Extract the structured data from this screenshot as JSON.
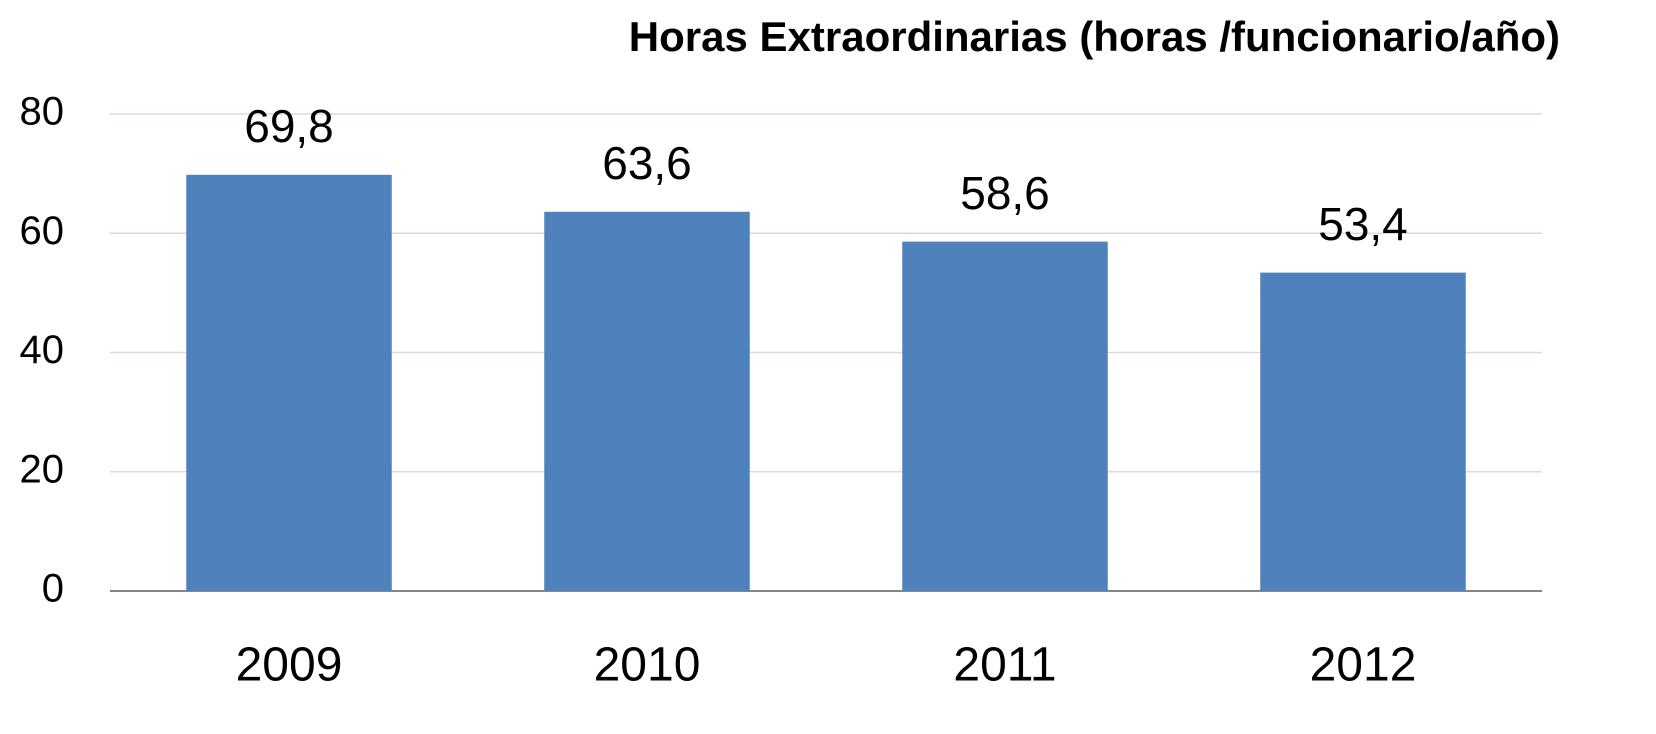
{
  "chart_data": {
    "type": "bar",
    "title": "Horas Extraordinarias (horas /funcionario/año)",
    "categories": [
      "2009",
      "2010",
      "2011",
      "2012"
    ],
    "values": [
      69.8,
      63.6,
      58.6,
      53.4
    ],
    "value_labels": [
      "69,8",
      "63,6",
      "58,6",
      "53,4"
    ],
    "color": "#4f81bd",
    "ylim": [
      0,
      80
    ],
    "yticks": [
      0,
      20,
      40,
      60,
      80
    ],
    "grid": true
  }
}
